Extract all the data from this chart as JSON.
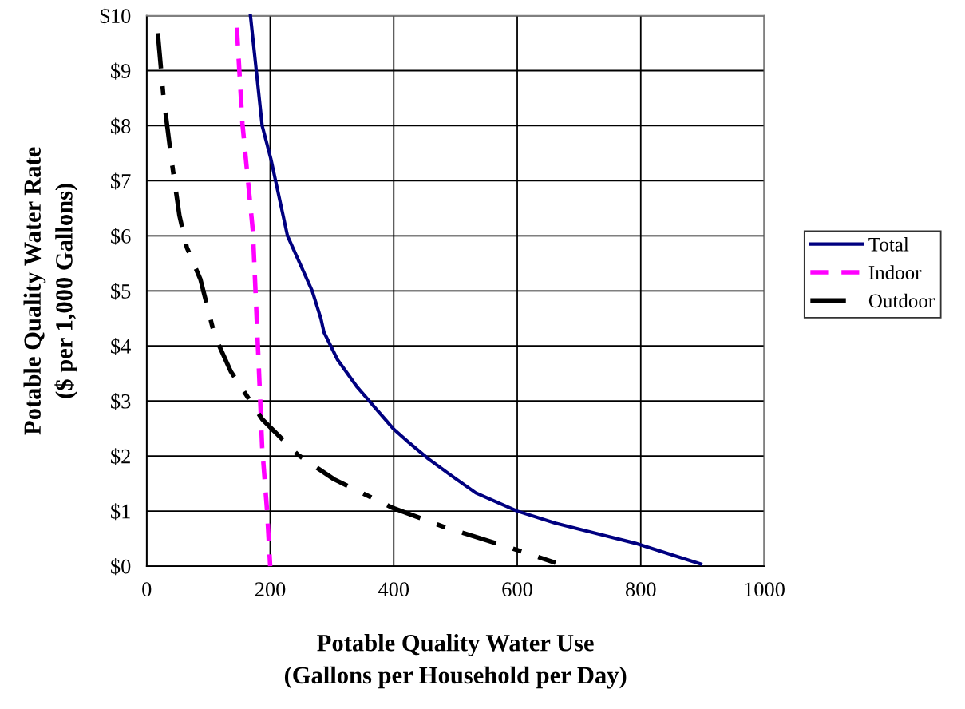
{
  "chart_data": {
    "type": "line",
    "xlabel": "Potable Quality Water Use\n(Gallons per Household per Day)",
    "ylabel": "Potable Quality Water Rate\n($ per 1,000 Gallons)",
    "xlim": [
      0,
      1000
    ],
    "xticks": [
      0,
      200,
      400,
      600,
      800,
      1000
    ],
    "ylim": [
      0,
      10
    ],
    "yticks": [
      {
        "value": 0,
        "label": "$0"
      },
      {
        "value": 1,
        "label": "$1"
      },
      {
        "value": 2,
        "label": "$2"
      },
      {
        "value": 3,
        "label": "$3"
      },
      {
        "value": 4,
        "label": "$4"
      },
      {
        "value": 5,
        "label": "$5"
      },
      {
        "value": 6,
        "label": "$6"
      },
      {
        "value": 7,
        "label": "$7"
      },
      {
        "value": 8,
        "label": "$8"
      },
      {
        "value": 9,
        "label": "$9"
      },
      {
        "value": 10,
        "label": "$10"
      }
    ],
    "grid": true,
    "legend": "right",
    "marker": "none",
    "series": [
      {
        "name": "Total",
        "color": "#000080",
        "line_style": "solid",
        "x": [
          168,
          187,
          201,
          228,
          238,
          268,
          282,
          287,
          309,
          341,
          399,
          424,
          456,
          495,
          533,
          600,
          662,
          790,
          897
        ],
        "values": [
          10,
          8,
          7.4,
          6.0,
          5.75,
          5.0,
          4.5,
          4.25,
          3.75,
          3.25,
          2.5,
          2.25,
          1.95,
          1.63,
          1.33,
          1.0,
          0.78,
          0.42,
          0.04
        ]
      },
      {
        "name": "Indoor",
        "color": "#ff00ff",
        "line_style": "dashed",
        "x": [
          146,
          155,
          172,
          181,
          187,
          195,
          200
        ],
        "values": [
          9.78,
          8.04,
          6.08,
          3.76,
          2.16,
          1.0,
          0
        ]
      },
      {
        "name": "Outdoor",
        "color": "#000000",
        "line_style": "dashdot",
        "x": [
          18,
          27,
          40,
          53,
          65,
          87,
          110,
          136,
          187,
          245,
          303,
          396,
          482,
          585,
          662
        ],
        "values": [
          9.68,
          8.55,
          7.39,
          6.37,
          5.79,
          5.21,
          4.19,
          3.54,
          2.67,
          2.02,
          1.58,
          1.07,
          0.71,
          0.35,
          0.06
        ]
      }
    ]
  }
}
